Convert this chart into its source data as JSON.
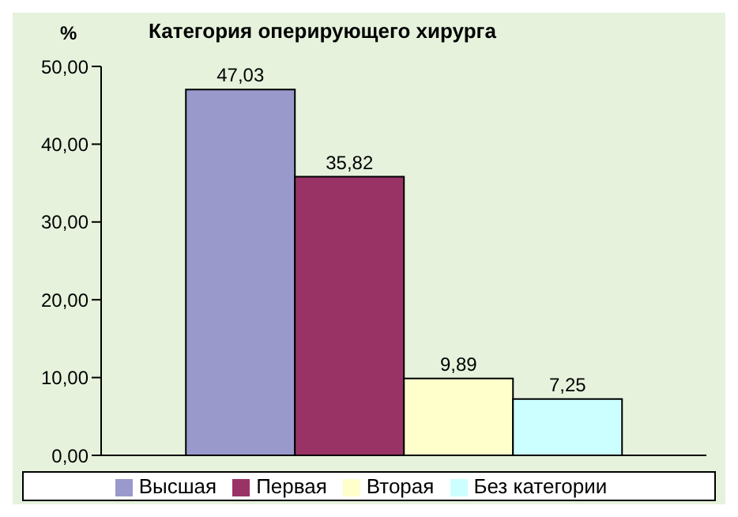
{
  "chart_data": {
    "type": "bar",
    "title": "Категория оперирующего хирурга",
    "ylabel": "%",
    "categories": [
      null
    ],
    "series": [
      {
        "name": "Высшая",
        "color": "#9999cc",
        "values": [
          47.03
        ],
        "value_labels": [
          "47,03"
        ]
      },
      {
        "name": "Первая",
        "color": "#993366",
        "values": [
          35.82
        ],
        "value_labels": [
          "35,82"
        ]
      },
      {
        "name": "Вторая",
        "color": "#ffffcc",
        "values": [
          9.89
        ],
        "value_labels": [
          "9,89"
        ]
      },
      {
        "name": "Без категории",
        "color": "#ccffff",
        "values": [
          7.25
        ],
        "value_labels": [
          "7,25"
        ]
      }
    ],
    "ylim": [
      0,
      50
    ],
    "yticks": [
      {
        "value": 0,
        "label": "0,00"
      },
      {
        "value": 10,
        "label": "10,00"
      },
      {
        "value": 20,
        "label": "20,00"
      },
      {
        "value": 30,
        "label": "30,00"
      },
      {
        "value": 40,
        "label": "40,00"
      },
      {
        "value": 50,
        "label": "50,00"
      }
    ],
    "grid": false,
    "legend": "bottom"
  }
}
